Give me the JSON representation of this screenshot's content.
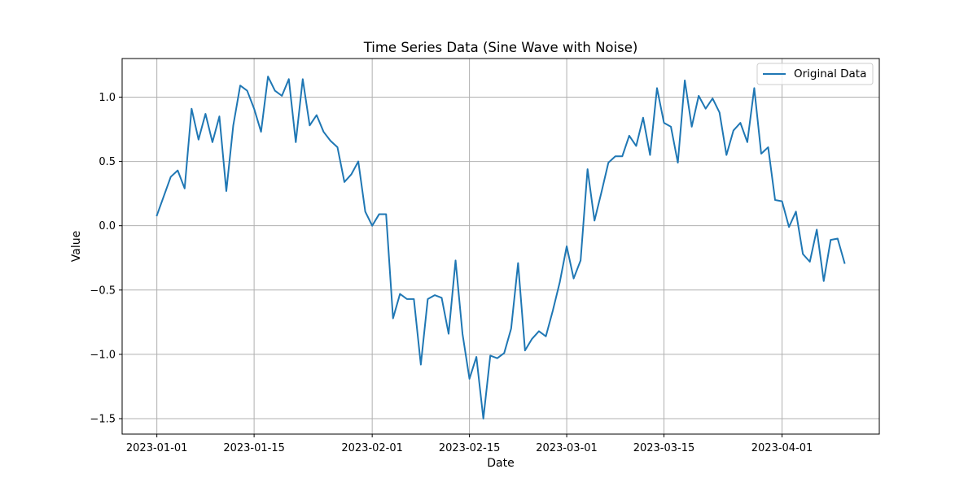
{
  "chart_data": {
    "type": "line",
    "title": "Time Series Data (Sine Wave with Noise)",
    "xlabel": "Date",
    "ylabel": "Value",
    "x_start_date": "2023-01-01",
    "x_step_days": 1,
    "xlim_days": [
      -5,
      104
    ],
    "ylim": [
      -1.62,
      1.3
    ],
    "x_ticks": [
      {
        "day": 0,
        "label": "2023-01-01"
      },
      {
        "day": 14,
        "label": "2023-01-15"
      },
      {
        "day": 31,
        "label": "2023-02-01"
      },
      {
        "day": 45,
        "label": "2023-02-15"
      },
      {
        "day": 59,
        "label": "2023-03-01"
      },
      {
        "day": 73,
        "label": "2023-03-15"
      },
      {
        "day": 90,
        "label": "2023-04-01"
      }
    ],
    "y_ticks": [
      {
        "value": 1.0,
        "label": "1.0"
      },
      {
        "value": 0.5,
        "label": "0.5"
      },
      {
        "value": 0.0,
        "label": "0.0"
      },
      {
        "value": -0.5,
        "label": "−0.5"
      },
      {
        "value": -1.0,
        "label": "−1.0"
      },
      {
        "value": -1.5,
        "label": "−1.5"
      }
    ],
    "grid": true,
    "legend_position": "top-right",
    "series": [
      {
        "name": "Original Data",
        "color": "#1f77b4",
        "values": [
          0.08,
          0.23,
          0.38,
          0.43,
          0.29,
          0.91,
          0.67,
          0.87,
          0.65,
          0.85,
          0.27,
          0.78,
          1.09,
          1.05,
          0.91,
          0.73,
          1.16,
          1.05,
          1.01,
          1.14,
          0.65,
          1.14,
          0.78,
          0.86,
          0.73,
          0.66,
          0.61,
          0.34,
          0.4,
          0.5,
          0.11,
          0.0,
          0.09,
          0.09,
          -0.72,
          -0.53,
          -0.57,
          -0.57,
          -1.08,
          -0.57,
          -0.54,
          -0.56,
          -0.84,
          -0.27,
          -0.84,
          -1.19,
          -1.02,
          -1.5,
          -1.01,
          -1.03,
          -0.99,
          -0.8,
          -0.29,
          -0.97,
          -0.88,
          -0.82,
          -0.86,
          -0.66,
          -0.44,
          -0.16,
          -0.41,
          -0.27,
          0.44,
          0.04,
          0.26,
          0.49,
          0.54,
          0.54,
          0.7,
          0.62,
          0.84,
          0.55,
          1.07,
          0.8,
          0.77,
          0.49,
          1.13,
          0.77,
          1.01,
          0.91,
          0.99,
          0.88,
          0.55,
          0.74,
          0.8,
          0.65,
          1.07,
          0.56,
          0.61,
          0.2,
          0.19,
          -0.01,
          0.11,
          -0.22,
          -0.28,
          -0.03,
          -0.43,
          -0.11,
          -0.1,
          -0.29
        ]
      }
    ]
  }
}
